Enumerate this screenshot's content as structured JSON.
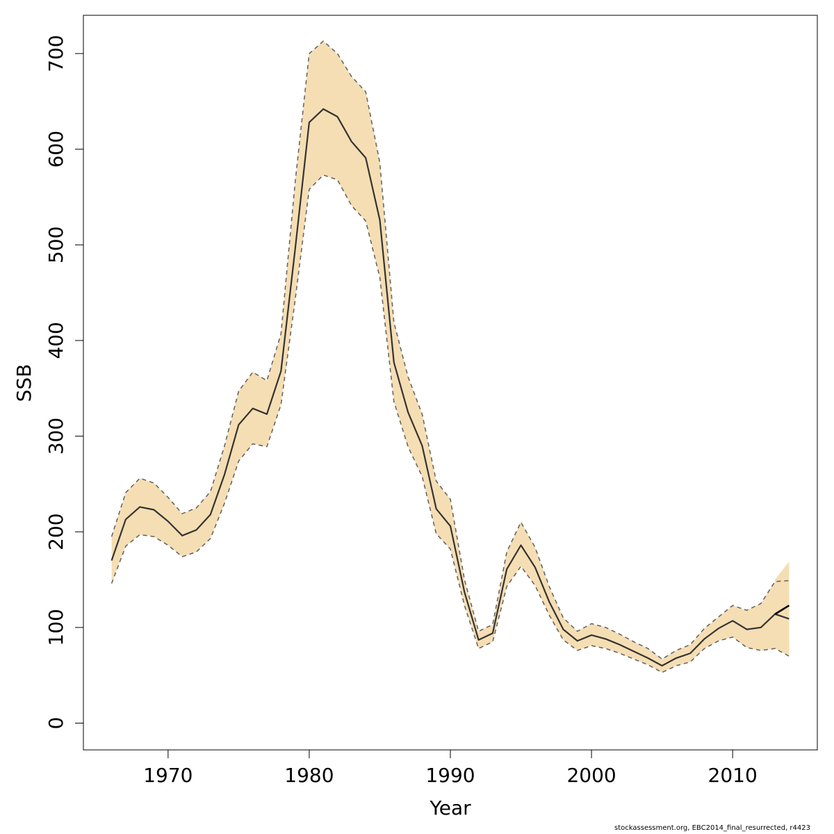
{
  "chart_data": {
    "type": "line",
    "title": "",
    "xlabel": "Year",
    "ylabel": "SSB",
    "xlim": [
      1964,
      2016
    ],
    "ylim": [
      -28,
      740
    ],
    "x_ticks": [
      1970,
      1980,
      1990,
      2000,
      2010
    ],
    "y_ticks": [
      0,
      100,
      200,
      300,
      400,
      500,
      600,
      700
    ],
    "grid": false,
    "legend": "none",
    "colors": {
      "band": "#F5DEB3",
      "estimate_line": "#333333",
      "bound_line": "#666666",
      "forecast_line": "#000000"
    },
    "series": [
      {
        "role": "estimate",
        "x": [
          1966,
          1967,
          1968,
          1969,
          1970,
          1971,
          1972,
          1973,
          1974,
          1975,
          1976,
          1977,
          1978,
          1979,
          1980,
          1981,
          1982,
          1983,
          1984,
          1985,
          1986,
          1987,
          1988,
          1989,
          1990,
          1991,
          1992,
          1993,
          1994,
          1995,
          1996,
          1997,
          1998,
          1999,
          2000,
          2001,
          2002,
          2003,
          2004,
          2005,
          2006,
          2007,
          2008,
          2009,
          2010,
          2011,
          2012,
          2013,
          2014
        ],
        "y": [
          170,
          213,
          226,
          223,
          211,
          196,
          202,
          218,
          260,
          312,
          329,
          323,
          368,
          495,
          628,
          642,
          634,
          608,
          591,
          526,
          377,
          325,
          290,
          224,
          206,
          137,
          87,
          94,
          161,
          186,
          163,
          127,
          98,
          86,
          92,
          88,
          82,
          75,
          68,
          60,
          68,
          73,
          88,
          99,
          107,
          98,
          100,
          114,
          109
        ]
      },
      {
        "role": "upper",
        "x": [
          1966,
          1967,
          1968,
          1969,
          1970,
          1971,
          1972,
          1973,
          1974,
          1975,
          1976,
          1977,
          1978,
          1979,
          1980,
          1981,
          1982,
          1983,
          1984,
          1985,
          1986,
          1987,
          1988,
          1989,
          1990,
          1991,
          1992,
          1993,
          1994,
          1995,
          1996,
          1997,
          1998,
          1999,
          2000,
          2001,
          2002,
          2003,
          2004,
          2005,
          2006,
          2007,
          2008,
          2009,
          2010,
          2011,
          2012,
          2013,
          2014
        ],
        "y": [
          195,
          241,
          256,
          251,
          236,
          219,
          225,
          242,
          290,
          347,
          367,
          358,
          407,
          565,
          700,
          713,
          700,
          676,
          660,
          586,
          419,
          362,
          323,
          253,
          234,
          150,
          96,
          103,
          179,
          210,
          184,
          143,
          110,
          96,
          104,
          100,
          93,
          85,
          78,
          67,
          76,
          82,
          99,
          111,
          123,
          118,
          125,
          148,
          149
        ]
      },
      {
        "role": "lower",
        "x": [
          1966,
          1967,
          1968,
          1969,
          1970,
          1971,
          1972,
          1973,
          1974,
          1975,
          1976,
          1977,
          1978,
          1979,
          1980,
          1981,
          1982,
          1983,
          1984,
          1985,
          1986,
          1987,
          1988,
          1989,
          1990,
          1991,
          1992,
          1993,
          1994,
          1995,
          1996,
          1997,
          1998,
          1999,
          2000,
          2001,
          2002,
          2003,
          2004,
          2005,
          2006,
          2007,
          2008,
          2009,
          2010,
          2011,
          2012,
          2013,
          2014
        ],
        "y": [
          146,
          185,
          197,
          195,
          186,
          174,
          179,
          193,
          230,
          274,
          292,
          289,
          333,
          442,
          558,
          573,
          568,
          541,
          525,
          466,
          336,
          289,
          258,
          198,
          182,
          123,
          78,
          85,
          143,
          164,
          144,
          113,
          87,
          76,
          81,
          78,
          73,
          67,
          61,
          53,
          60,
          64,
          78,
          86,
          90,
          79,
          76,
          78,
          70
        ]
      },
      {
        "role": "forecast",
        "x": [
          2013,
          2014
        ],
        "y": [
          114,
          123
        ]
      },
      {
        "role": "forecast_upper",
        "x": [
          2013,
          2014
        ],
        "y": [
          150,
          169
        ]
      },
      {
        "role": "forecast_lower",
        "x": [
          2013,
          2014
        ],
        "y": [
          78,
          77
        ]
      }
    ]
  },
  "footer": {
    "credit": "stockassessment.org, EBC2014_final_resurrected, r4423"
  }
}
